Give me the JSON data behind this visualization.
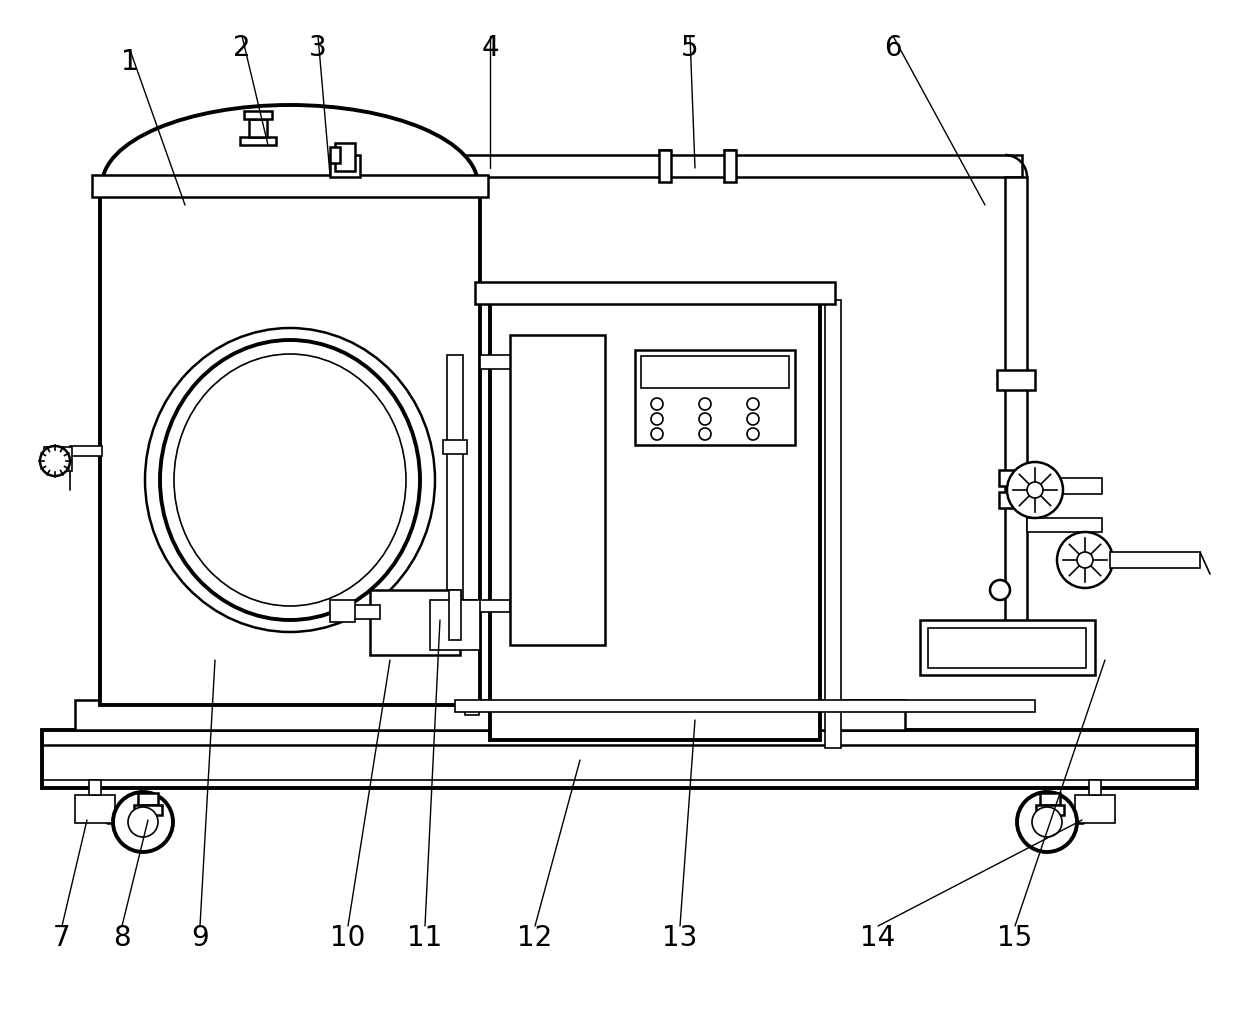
{
  "bg_color": "#ffffff",
  "line_color": "#000000",
  "lw_thin": 1.2,
  "lw_mid": 1.8,
  "lw_thick": 2.8,
  "label_fontsize": 20,
  "labels": [
    [
      "1",
      130,
      62,
      185,
      205
    ],
    [
      "2",
      242,
      48,
      268,
      145
    ],
    [
      "3",
      318,
      48,
      330,
      175
    ],
    [
      "4",
      490,
      48,
      490,
      168
    ],
    [
      "5",
      690,
      48,
      695,
      168
    ],
    [
      "6",
      893,
      48,
      985,
      205
    ],
    [
      "7",
      62,
      938,
      87,
      820
    ],
    [
      "8",
      122,
      938,
      148,
      820
    ],
    [
      "9",
      200,
      938,
      215,
      660
    ],
    [
      "10",
      348,
      938,
      390,
      660
    ],
    [
      "11",
      425,
      938,
      440,
      620
    ],
    [
      "12",
      535,
      938,
      580,
      760
    ],
    [
      "13",
      680,
      938,
      695,
      720
    ],
    [
      "14",
      878,
      938,
      1082,
      820
    ],
    [
      "15",
      1015,
      938,
      1105,
      660
    ]
  ]
}
